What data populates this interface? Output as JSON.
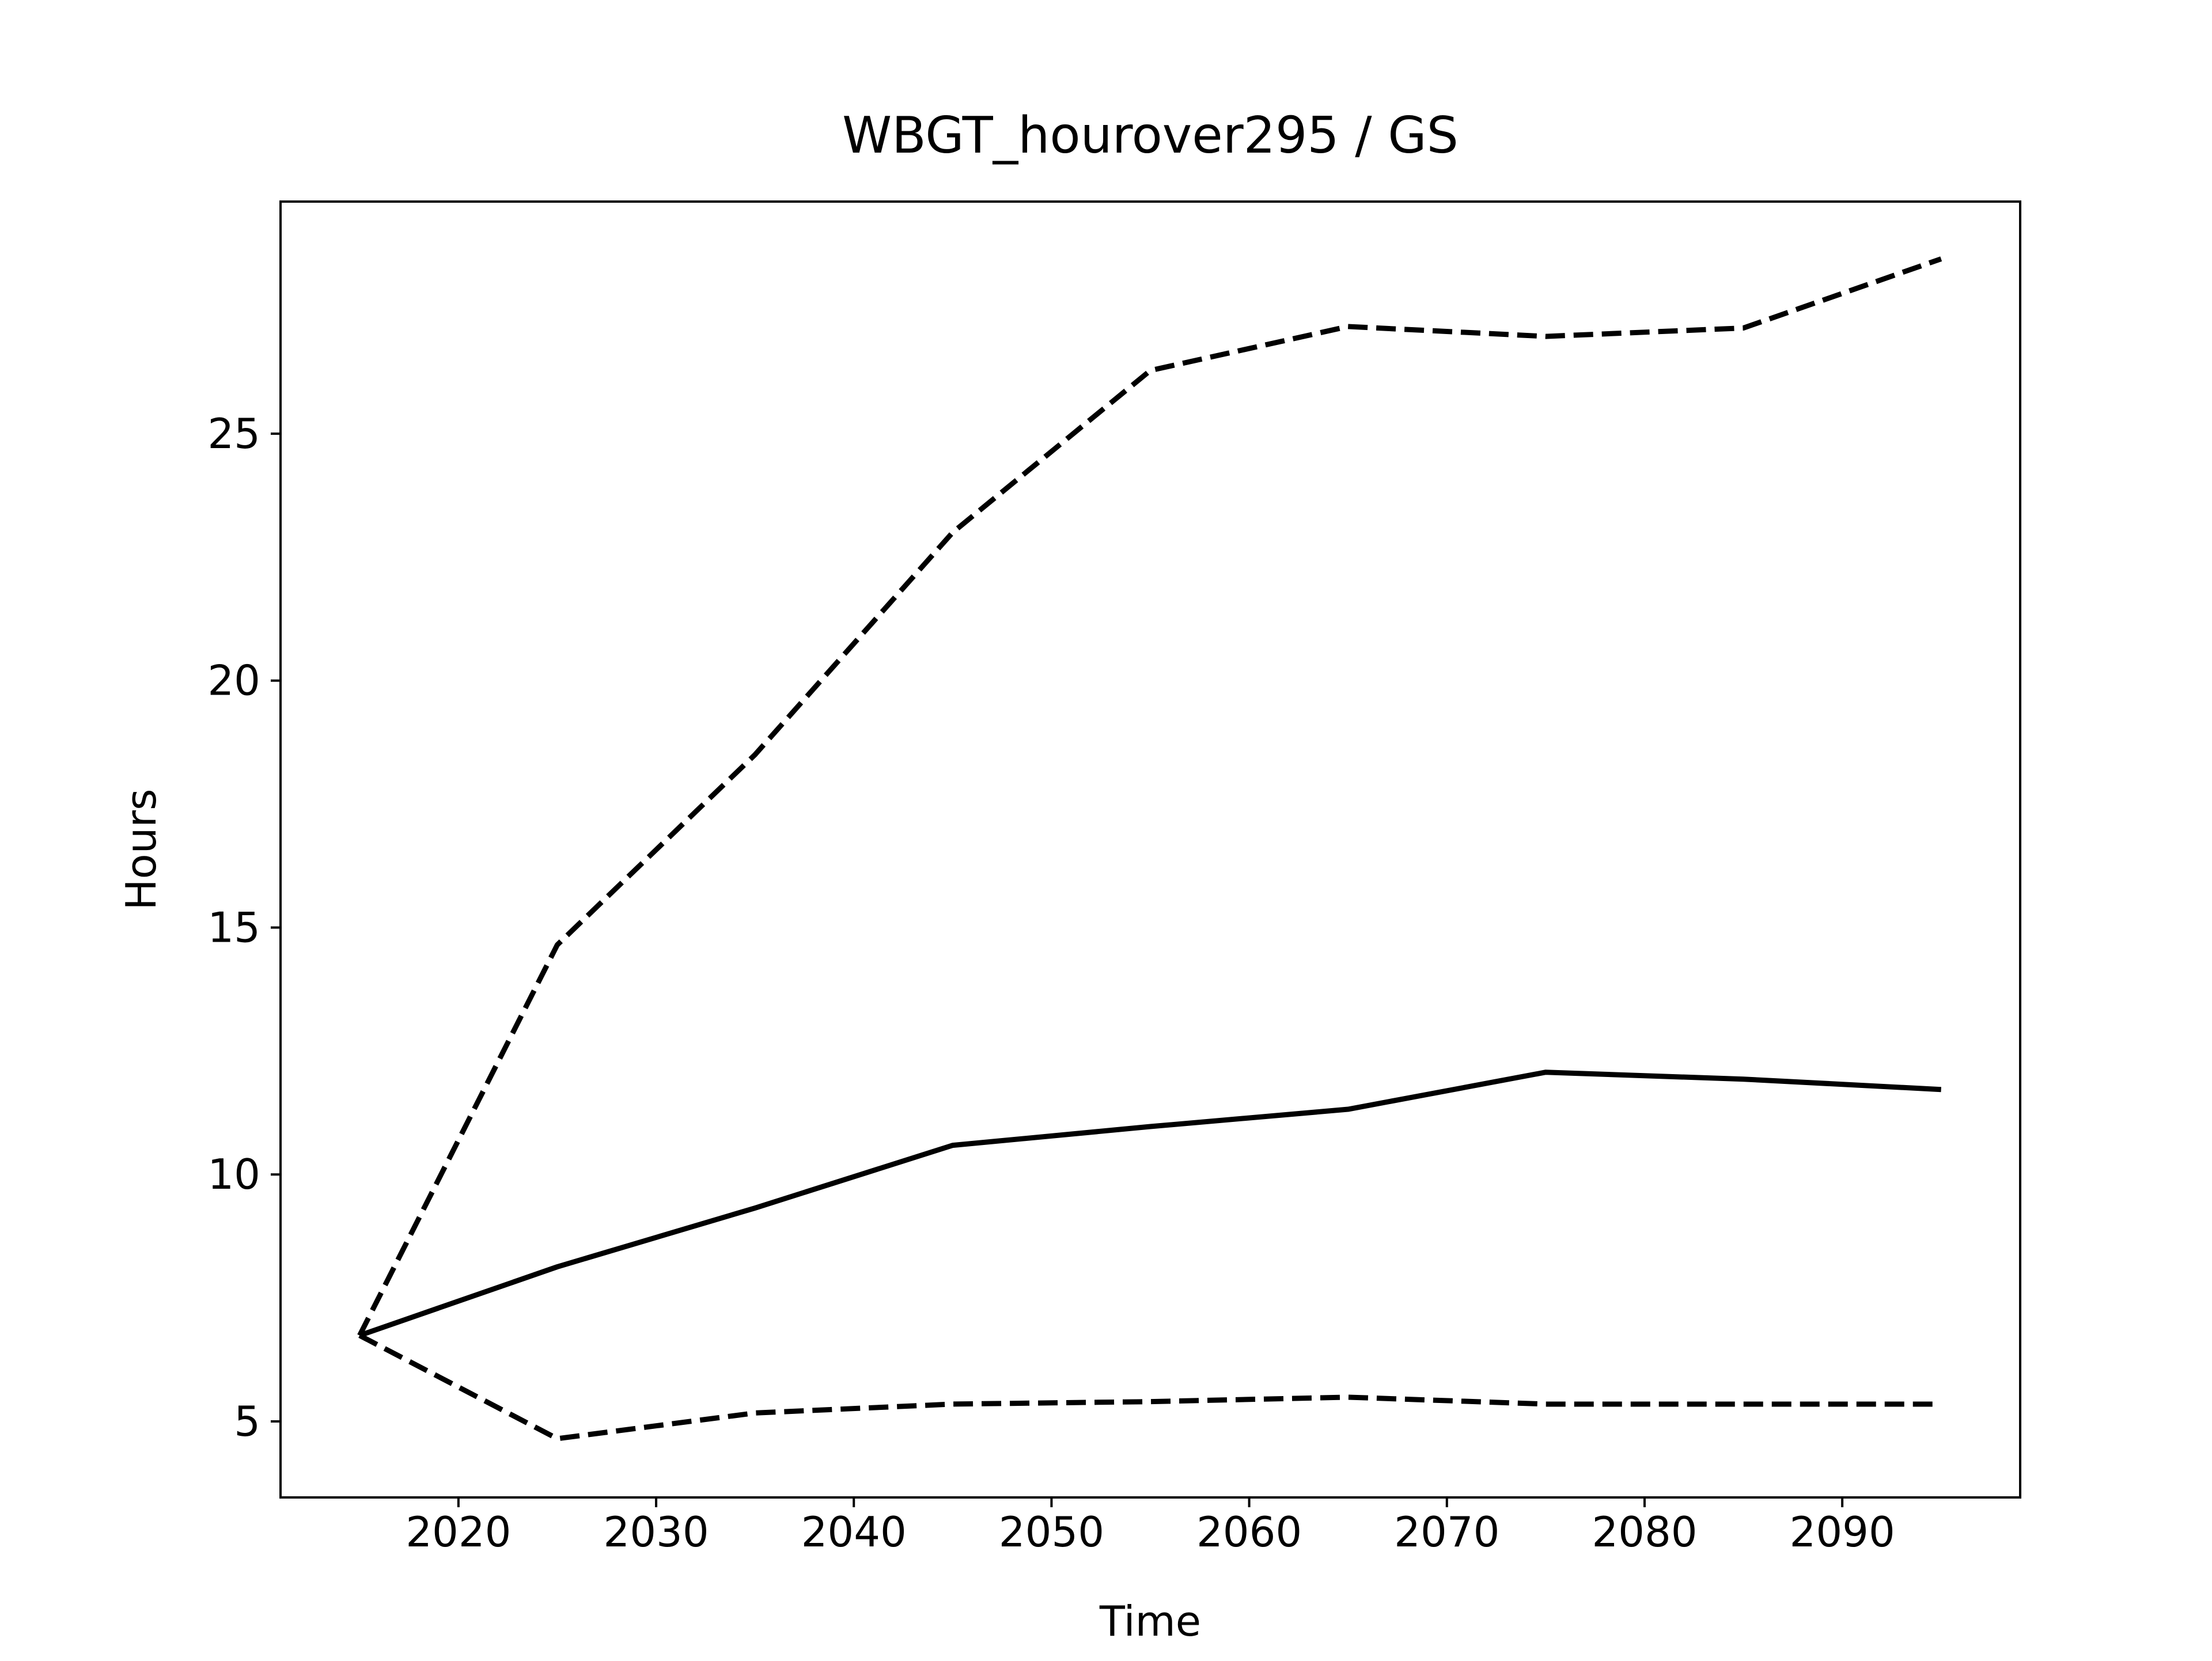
{
  "chart_data": {
    "type": "line",
    "title": "WBGT_hourover295 / GS",
    "xlabel": "Time",
    "ylabel": "Hours",
    "x": [
      2015,
      2025,
      2035,
      2045,
      2055,
      2065,
      2075,
      2085,
      2095
    ],
    "series": [
      {
        "color": "#000000",
        "linestyle": "solid",
        "values": [
          6.74,
          8.13,
          9.32,
          10.59,
          10.97,
          11.32,
          12.07,
          11.93,
          11.72
        ]
      },
      {
        "color": "#000000",
        "linestyle": "dashed",
        "values": [
          6.74,
          14.65,
          18.5,
          23.0,
          26.28,
          27.17,
          26.97,
          27.14,
          28.54
        ]
      },
      {
        "color": "#000000",
        "linestyle": "dashed",
        "values": [
          6.74,
          4.65,
          5.17,
          5.35,
          5.4,
          5.49,
          5.35,
          5.35,
          5.35
        ]
      }
    ],
    "xlim": [
      2011,
      2099
    ],
    "ylim": [
      3.46,
      29.7
    ],
    "xticks": [
      2020,
      2030,
      2040,
      2050,
      2060,
      2070,
      2080,
      2090
    ],
    "yticks": [
      5,
      10,
      15,
      20,
      25
    ],
    "grid": false
  }
}
